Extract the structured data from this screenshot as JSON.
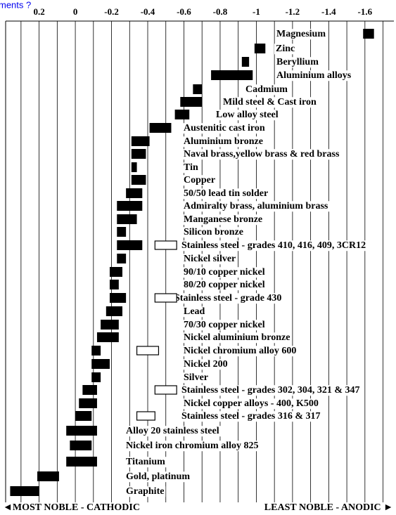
{
  "header_link": "ments ?",
  "chart_data": {
    "type": "range_bar",
    "xlim": [
      0.385,
      -1.76
    ],
    "xticks": [
      0.2,
      0,
      -0.2,
      -0.4,
      -0.6,
      -0.8,
      -1.0,
      -1.2,
      -1.4,
      -1.6
    ],
    "xticks_minor": [
      0.3,
      0.1,
      -0.1,
      -0.3,
      -0.5,
      -0.7,
      -0.9,
      -1.1,
      -1.3,
      -1.5,
      -1.7
    ],
    "grid": true,
    "color": "#000000",
    "passive_color": "#ffffff",
    "left_note": "◄MOST NOBLE - CATHODIC",
    "right_note": "LEAST NOBLE - ANODIC ►",
    "categories": [
      "Magnesium",
      "Zinc",
      "Beryllium",
      "Aluminium alloys",
      "Cadmium",
      "Mild steel & Cast iron",
      "Low alloy steel",
      "Austenitic cast iron",
      "Aluminium bronze",
      "Naval brass,yellow brass & red brass",
      "Tin",
      "Copper",
      "50/50 lead tin solder",
      "Admiralty brass, aluminium brass",
      "Manganese bronze",
      "Silicon bronze",
      "Stainless steel - grades 410, 416, 409, 3CR12",
      "Nickel silver",
      "90/10 copper nickel",
      "80/20 copper nickel",
      "Stainless steel  - grade 430",
      "Lead",
      "70/30 copper nickel",
      "Nickel aluminium bronze",
      "Nickel chromium alloy 600",
      "Nickel 200",
      "Silver",
      "Stainless steel - grades 302, 304, 321 & 347",
      "Nickel copper  alloys - 400, K500",
      "Stainless steel - grades 316 & 317",
      "Alloy 20 stainless steel",
      "Nickel iron chromium alloy 825",
      "Titanium",
      "Gold, platinum",
      "Graphite"
    ],
    "values": [
      [
        -1.59,
        -1.65
      ],
      [
        -0.99,
        -1.05
      ],
      [
        -0.92,
        -0.96
      ],
      [
        -0.75,
        -0.98
      ],
      [
        -0.65,
        -0.7
      ],
      [
        -0.58,
        -0.7
      ],
      [
        -0.55,
        -0.63
      ],
      [
        -0.41,
        -0.53
      ],
      [
        -0.31,
        -0.41
      ],
      [
        -0.31,
        -0.39
      ],
      [
        -0.31,
        -0.34
      ],
      [
        -0.31,
        -0.39
      ],
      [
        -0.28,
        -0.37
      ],
      [
        -0.23,
        -0.37
      ],
      [
        -0.23,
        -0.34
      ],
      [
        -0.23,
        -0.28
      ],
      [
        -0.23,
        -0.37
      ],
      [
        -0.23,
        -0.28
      ],
      [
        -0.19,
        -0.26
      ],
      [
        -0.19,
        -0.24
      ],
      [
        -0.19,
        -0.28
      ],
      [
        -0.17,
        -0.26
      ],
      [
        -0.14,
        -0.24
      ],
      [
        -0.12,
        -0.24
      ],
      [
        -0.09,
        -0.14
      ],
      [
        -0.09,
        -0.19
      ],
      [
        -0.09,
        -0.14
      ],
      [
        -0.04,
        -0.12
      ],
      [
        -0.02,
        -0.12
      ],
      [
        0,
        -0.09
      ],
      [
        0.05,
        -0.12
      ],
      [
        0.03,
        -0.09
      ],
      [
        0.05,
        -0.12
      ],
      [
        0.21,
        0.09
      ],
      [
        0.36,
        0.2
      ]
    ],
    "passive_values": [
      null,
      null,
      null,
      null,
      null,
      null,
      null,
      null,
      null,
      null,
      null,
      null,
      null,
      null,
      null,
      null,
      [
        -0.44,
        -0.56
      ],
      null,
      null,
      null,
      [
        -0.44,
        -0.56
      ],
      null,
      null,
      null,
      [
        -0.34,
        -0.46
      ],
      null,
      null,
      [
        -0.44,
        -0.56
      ],
      null,
      [
        -0.34,
        -0.44
      ],
      null,
      null,
      null,
      null,
      null
    ]
  }
}
